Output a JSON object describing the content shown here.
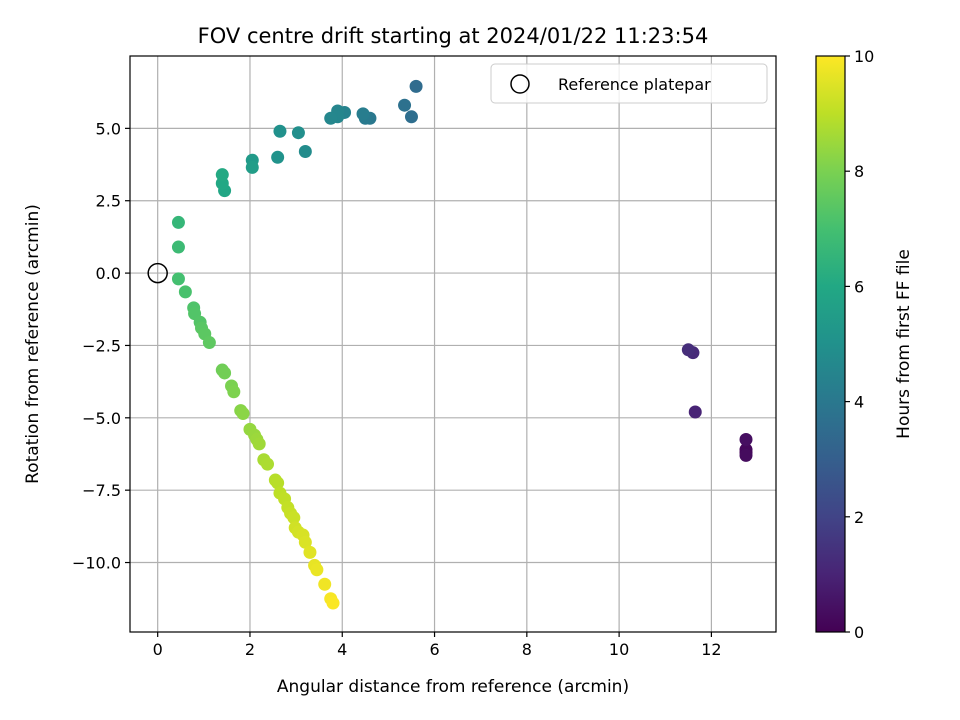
{
  "chart_data": {
    "type": "scatter",
    "title": "FOV centre drift starting at 2024/01/22 11:23:54",
    "xlabel": "Angular distance from reference (arcmin)",
    "ylabel": "Rotation from reference (arcmin)",
    "xlim": [
      -0.6,
      13.4
    ],
    "ylim": [
      -12.4,
      7.5
    ],
    "x_ticks": [
      0,
      2,
      4,
      6,
      8,
      10,
      12
    ],
    "x_tick_labels": [
      "0",
      "2",
      "4",
      "6",
      "8",
      "10",
      "12"
    ],
    "y_ticks": [
      -10.0,
      -7.5,
      -5.0,
      -2.5,
      0.0,
      2.5,
      5.0
    ],
    "y_tick_labels": [
      "−10.0",
      "−7.5",
      "−5.0",
      "−2.5",
      "0.0",
      "2.5",
      "5.0"
    ],
    "grid": true,
    "legend": {
      "position": "top-right",
      "entries": [
        "Reference platepar"
      ]
    },
    "reference_point": {
      "x": 0,
      "y": 0,
      "label": "Reference platepar"
    },
    "colorbar": {
      "label": "Hours from first FF file",
      "range": [
        0,
        10
      ],
      "ticks": [
        0,
        2,
        4,
        6,
        8,
        10
      ],
      "tick_labels": [
        "0",
        "2",
        "4",
        "6",
        "8",
        "10"
      ],
      "colormap": "viridis"
    },
    "points": [
      {
        "x": 12.75,
        "y": -6.2,
        "h": 0.1
      },
      {
        "x": 12.75,
        "y": -6.1,
        "h": 0.2
      },
      {
        "x": 12.75,
        "y": -6.3,
        "h": 0.3
      },
      {
        "x": 12.75,
        "y": -5.75,
        "h": 0.4
      },
      {
        "x": 11.65,
        "y": -4.8,
        "h": 1.0
      },
      {
        "x": 11.6,
        "y": -2.75,
        "h": 1.2
      },
      {
        "x": 11.5,
        "y": -2.65,
        "h": 1.3
      },
      {
        "x": 5.6,
        "y": 6.45,
        "h": 3.5
      },
      {
        "x": 5.5,
        "y": 5.4,
        "h": 3.6
      },
      {
        "x": 5.35,
        "y": 5.8,
        "h": 3.7
      },
      {
        "x": 4.6,
        "y": 5.35,
        "h": 4.0
      },
      {
        "x": 4.5,
        "y": 5.35,
        "h": 4.1
      },
      {
        "x": 4.45,
        "y": 5.5,
        "h": 4.2
      },
      {
        "x": 4.05,
        "y": 5.55,
        "h": 4.4
      },
      {
        "x": 3.9,
        "y": 5.6,
        "h": 4.5
      },
      {
        "x": 3.9,
        "y": 5.4,
        "h": 4.55
      },
      {
        "x": 3.75,
        "y": 5.35,
        "h": 4.6
      },
      {
        "x": 3.2,
        "y": 4.2,
        "h": 4.8
      },
      {
        "x": 3.05,
        "y": 4.85,
        "h": 4.9
      },
      {
        "x": 2.65,
        "y": 4.9,
        "h": 5.0
      },
      {
        "x": 2.6,
        "y": 4.0,
        "h": 5.1
      },
      {
        "x": 2.05,
        "y": 3.9,
        "h": 5.4
      },
      {
        "x": 2.05,
        "y": 3.65,
        "h": 5.5
      },
      {
        "x": 1.45,
        "y": 2.85,
        "h": 5.9
      },
      {
        "x": 1.4,
        "y": 3.1,
        "h": 6.0
      },
      {
        "x": 1.4,
        "y": 3.4,
        "h": 6.05
      },
      {
        "x": 0.45,
        "y": 1.75,
        "h": 6.6
      },
      {
        "x": 0.45,
        "y": 0.9,
        "h": 6.8
      },
      {
        "x": 0.45,
        "y": -0.2,
        "h": 7.0
      },
      {
        "x": 0.6,
        "y": -0.65,
        "h": 7.1
      },
      {
        "x": 0.78,
        "y": -1.2,
        "h": 7.2
      },
      {
        "x": 0.8,
        "y": -1.4,
        "h": 7.25
      },
      {
        "x": 0.92,
        "y": -1.7,
        "h": 7.3
      },
      {
        "x": 0.95,
        "y": -1.9,
        "h": 7.4
      },
      {
        "x": 1.02,
        "y": -2.1,
        "h": 7.45
      },
      {
        "x": 1.12,
        "y": -2.4,
        "h": 7.5
      },
      {
        "x": 1.4,
        "y": -3.35,
        "h": 7.8
      },
      {
        "x": 1.45,
        "y": -3.45,
        "h": 7.85
      },
      {
        "x": 1.6,
        "y": -3.9,
        "h": 8.0
      },
      {
        "x": 1.65,
        "y": -4.1,
        "h": 8.05
      },
      {
        "x": 1.8,
        "y": -4.75,
        "h": 8.2
      },
      {
        "x": 1.85,
        "y": -4.85,
        "h": 8.25
      },
      {
        "x": 2.0,
        "y": -5.4,
        "h": 8.4
      },
      {
        "x": 2.1,
        "y": -5.6,
        "h": 8.45
      },
      {
        "x": 2.15,
        "y": -5.75,
        "h": 8.5
      },
      {
        "x": 2.2,
        "y": -5.9,
        "h": 8.55
      },
      {
        "x": 2.3,
        "y": -6.45,
        "h": 8.7
      },
      {
        "x": 2.38,
        "y": -6.6,
        "h": 8.75
      },
      {
        "x": 2.55,
        "y": -7.15,
        "h": 8.9
      },
      {
        "x": 2.6,
        "y": -7.25,
        "h": 8.92
      },
      {
        "x": 2.65,
        "y": -7.6,
        "h": 9.0
      },
      {
        "x": 2.75,
        "y": -7.8,
        "h": 9.05
      },
      {
        "x": 2.82,
        "y": -8.1,
        "h": 9.1
      },
      {
        "x": 2.88,
        "y": -8.3,
        "h": 9.15
      },
      {
        "x": 2.95,
        "y": -8.45,
        "h": 9.2
      },
      {
        "x": 2.98,
        "y": -8.8,
        "h": 9.3
      },
      {
        "x": 3.05,
        "y": -8.95,
        "h": 9.35
      },
      {
        "x": 3.15,
        "y": -9.05,
        "h": 9.4
      },
      {
        "x": 3.2,
        "y": -9.3,
        "h": 9.45
      },
      {
        "x": 3.3,
        "y": -9.65,
        "h": 9.55
      },
      {
        "x": 3.4,
        "y": -10.1,
        "h": 9.65
      },
      {
        "x": 3.45,
        "y": -10.25,
        "h": 9.7
      },
      {
        "x": 3.62,
        "y": -10.75,
        "h": 9.8
      },
      {
        "x": 3.75,
        "y": -11.25,
        "h": 9.9
      },
      {
        "x": 3.8,
        "y": -11.4,
        "h": 9.95
      }
    ]
  }
}
